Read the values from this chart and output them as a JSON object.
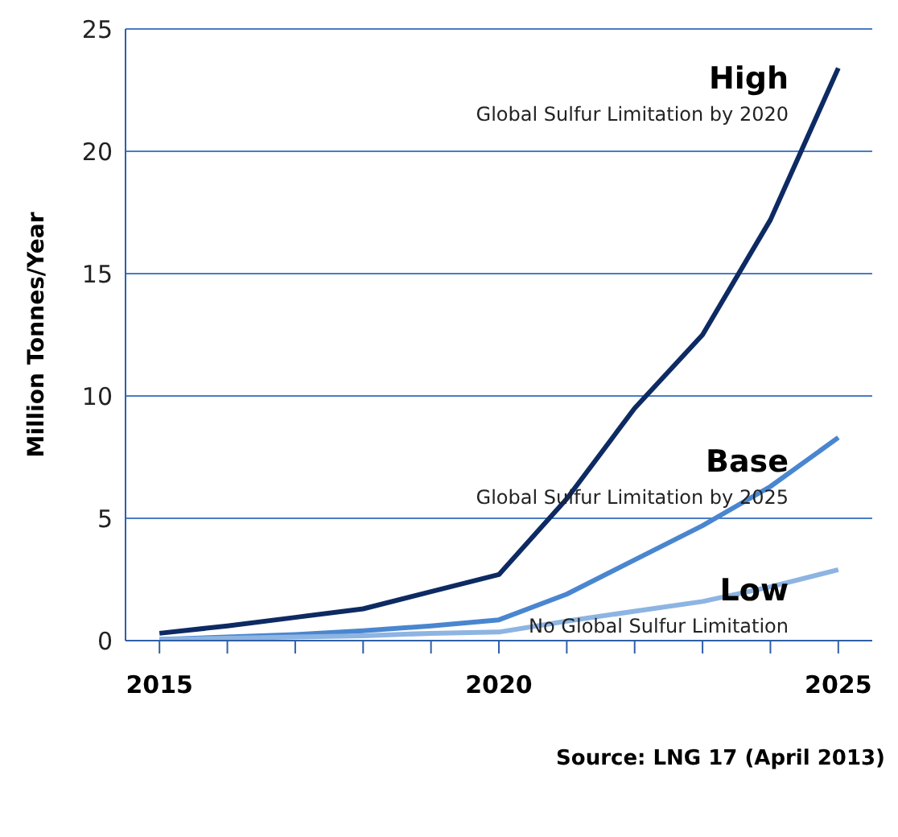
{
  "chart_data": {
    "type": "line",
    "ylabel": "Million Tonnes/Year",
    "categories": [
      "2015",
      null,
      null,
      null,
      null,
      "2020",
      null,
      null,
      null,
      null,
      "2025"
    ],
    "series": [
      {
        "name": "High",
        "color": "#0d2a63",
        "values": [
          0.3,
          0.6,
          0.95,
          1.3,
          2.0,
          2.7,
          5.8,
          9.5,
          12.5,
          17.2,
          23.4
        ]
      },
      {
        "name": "Base",
        "color": "#4a86d0",
        "values": [
          0.05,
          0.15,
          0.25,
          0.4,
          0.6,
          0.85,
          1.9,
          3.3,
          4.7,
          6.3,
          8.3
        ]
      },
      {
        "name": "Low",
        "color": "#8db4e2",
        "values": [
          0.05,
          0.1,
          0.15,
          0.2,
          0.3,
          0.35,
          0.8,
          1.2,
          1.6,
          2.2,
          2.9
        ]
      }
    ],
    "annotations": [
      "Global Sulfur Limitation by 2020",
      "Global Sulfur Limitation by 2025",
      "No Global Sulfur Limitation",
      "Source: LNG 17 (April 2013)"
    ],
    "ylim": [
      0,
      25
    ],
    "yticks": [
      0,
      5,
      10,
      15,
      20,
      25
    ],
    "grid": "y",
    "marker": "none"
  }
}
